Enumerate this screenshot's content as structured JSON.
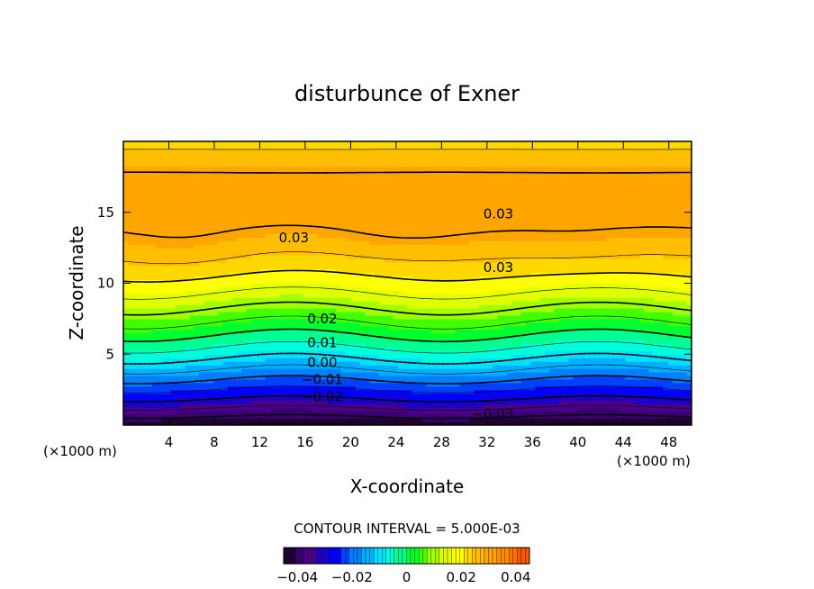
{
  "chart_data": {
    "type": "heatmap",
    "title": "disturbunce of Exner",
    "xlabel": "X-coordinate",
    "ylabel": "Z-coordinate",
    "x_unit_left": "(×1000 m)",
    "x_unit_right": "(×1000 m)",
    "xlim": [
      0,
      50
    ],
    "ylim": [
      0,
      20
    ],
    "x_ticks": [
      4,
      8,
      12,
      16,
      20,
      24,
      28,
      32,
      36,
      40,
      44,
      48
    ],
    "x_tick_labels": [
      "4",
      "8",
      "12",
      "16",
      "20",
      "24",
      "28",
      "32",
      "36",
      "40",
      "44",
      "48"
    ],
    "y_ticks": [
      5,
      10,
      15
    ],
    "y_tick_labels": [
      "5",
      "10",
      "15"
    ],
    "contour_interval_text": "CONTOUR INTERVAL = 5.000E-03",
    "contour_interval": 0.005,
    "value_range": [
      -0.045,
      0.045
    ],
    "colorbar": {
      "ticks": [
        -0.04,
        -0.02,
        0,
        0.02,
        0.04
      ],
      "tick_labels": [
        "−0.04",
        "−0.02",
        "0",
        "0.02",
        "0.04"
      ]
    },
    "contour_labels": [
      {
        "text": "0.03",
        "x": 15,
        "z": 13.2
      },
      {
        "text": "0.03",
        "x": 33,
        "z": 14.9
      },
      {
        "text": "0.03",
        "x": 33,
        "z": 11.1
      },
      {
        "text": "0.02",
        "x": 17.5,
        "z": 7.5
      },
      {
        "text": "0.01",
        "x": 17.5,
        "z": 5.8
      },
      {
        "text": "0.00",
        "x": 17.5,
        "z": 4.4
      },
      {
        "text": "−0.01",
        "x": 17.5,
        "z": 3.2
      },
      {
        "text": "−0.02",
        "x": 17.5,
        "z": 2.0
      },
      {
        "text": "−0.03",
        "x": 32.5,
        "z": 0.8
      }
    ],
    "colors": [
      "#200030",
      "#3a0070",
      "#4b0088",
      "#1a00c8",
      "#0000ff",
      "#0040ff",
      "#0080ff",
      "#00b0ff",
      "#00e0ff",
      "#00ffd8",
      "#00ff90",
      "#00ff30",
      "#40ff00",
      "#a0ff00",
      "#e0ff00",
      "#ffff00",
      "#ffd800",
      "#ffbf00",
      "#ffa500",
      "#ff8c00",
      "#ff7000",
      "#ff5500"
    ]
  }
}
